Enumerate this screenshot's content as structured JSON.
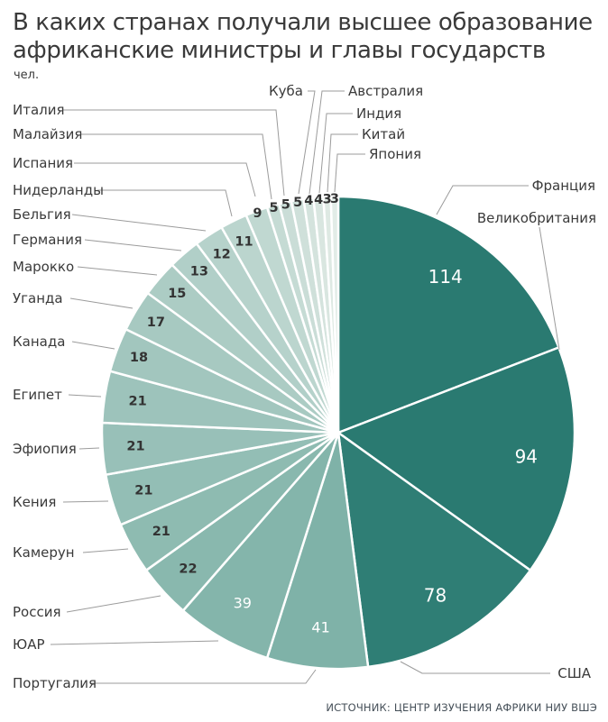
{
  "header": {
    "title_line1": "В каких странах получали высшее образование",
    "title_line2": "африканские министры и главы государств",
    "unit": "чел."
  },
  "footer": {
    "source": "ИСТОЧНИК: ЦЕНТР ИЗУЧЕНИЯ АФРИКИ НИУ ВШЭ"
  },
  "chart_data": {
    "type": "pie",
    "title": "В каких странах получали высшее образование африканские министры и главы государств",
    "unit": "чел.",
    "source": "ИСТОЧНИК: ЦЕНТР ИЗУЧЕНИЯ АФРИКИ НИУ ВШЭ",
    "start_angle_deg": 0,
    "direction": "clockwise",
    "total": 596,
    "gap_color": "#ffffff",
    "leader_line_color": "#9b9b9b",
    "slices": [
      {
        "label": "Франция",
        "value": 114,
        "color": "#2a7a71"
      },
      {
        "label": "Великобритания",
        "value": 94,
        "color": "#2a7a71"
      },
      {
        "label": "США",
        "value": 78,
        "color": "#2f7e75"
      },
      {
        "label": "Португалия",
        "value": 41,
        "color": "#7fb2a8"
      },
      {
        "label": "ЮАР",
        "value": 39,
        "color": "#84b5ab"
      },
      {
        "label": "Россия",
        "value": 22,
        "color": "#89b8ae"
      },
      {
        "label": "Камерун",
        "value": 21,
        "color": "#8ebbb1"
      },
      {
        "label": "Кения",
        "value": 21,
        "color": "#93beb5"
      },
      {
        "label": "Эфиопия",
        "value": 21,
        "color": "#98c0b8"
      },
      {
        "label": "Египет",
        "value": 21,
        "color": "#9dc3bb"
      },
      {
        "label": "Канада",
        "value": 18,
        "color": "#a2c6be"
      },
      {
        "label": "Уганда",
        "value": 17,
        "color": "#a7c9c1"
      },
      {
        "label": "Марокко",
        "value": 15,
        "color": "#acccc4"
      },
      {
        "label": "Германия",
        "value": 13,
        "color": "#b1cfc8"
      },
      {
        "label": "Бельгия",
        "value": 12,
        "color": "#b6d2cb"
      },
      {
        "label": "Нидерланды",
        "value": 11,
        "color": "#bbd5ce"
      },
      {
        "label": "Испания",
        "value": 9,
        "color": "#c0d8d1"
      },
      {
        "label": "Малайзия",
        "value": 5,
        "color": "#c5dbd4"
      },
      {
        "label": "Италия",
        "value": 5,
        "color": "#caddd7"
      },
      {
        "label": "Куба",
        "value": 5,
        "color": "#cfe0da"
      },
      {
        "label": "Австралия",
        "value": 4,
        "color": "#d4e3dd"
      },
      {
        "label": "Индия",
        "value": 4,
        "color": "#d9e6e0"
      },
      {
        "label": "Китай",
        "value": 3,
        "color": "#dee9e3"
      },
      {
        "label": "Япония",
        "value": 3,
        "color": "#e2ece7"
      }
    ]
  }
}
